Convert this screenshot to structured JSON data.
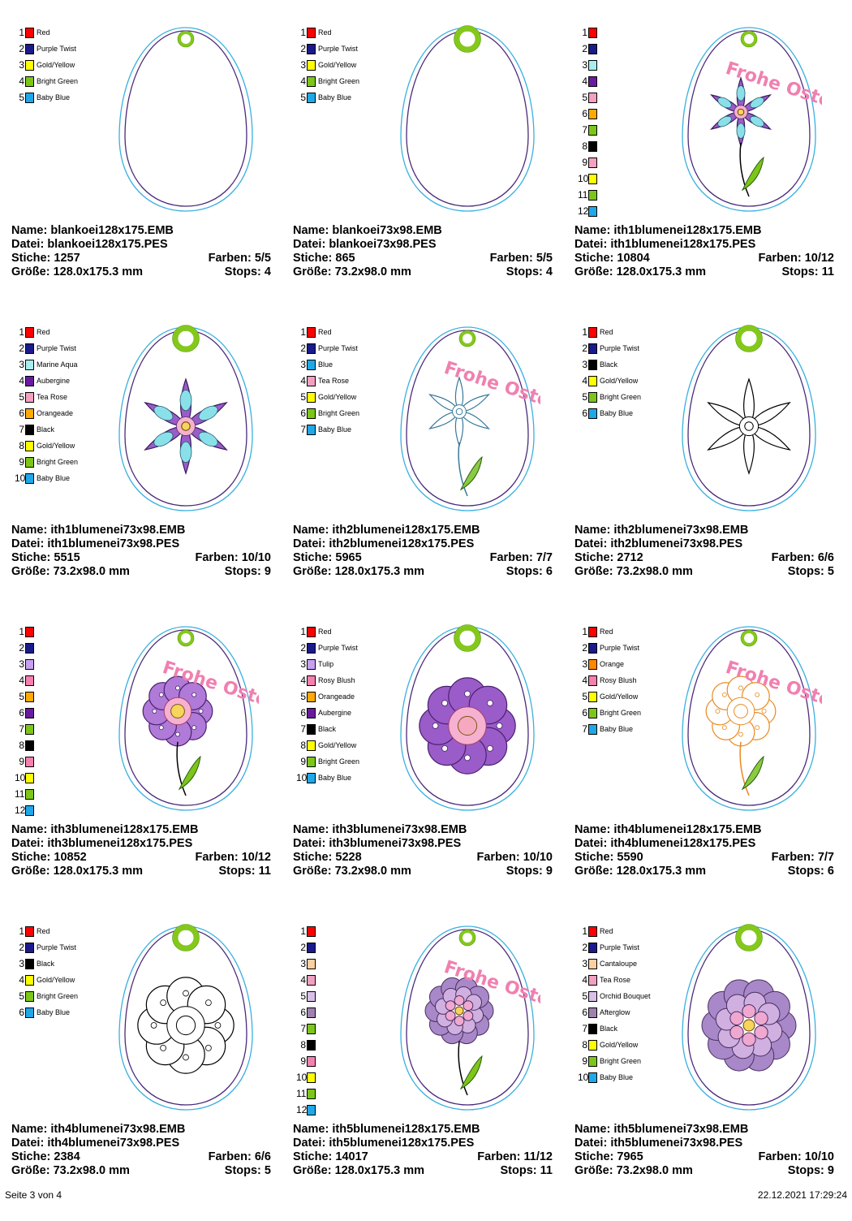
{
  "labels": {
    "name": "Name:",
    "file": "Datei:",
    "stitches": "Stiche:",
    "colors": "Farben:",
    "size": "Größe:",
    "stops": "Stops:"
  },
  "footer": {
    "page": "Seite 3 von 4",
    "datetime": "22.12.2021 17:29:24"
  },
  "designs": [
    {
      "name": "blankoei128x175.EMB",
      "file": "blankoei128x175.PES",
      "stitches": "1257",
      "colors": "5/5",
      "size": "128.0x175.3 mm",
      "stops": "4",
      "art": "blank",
      "ring": "small",
      "palette": [
        [
          "Red",
          "#ff0000"
        ],
        [
          "Purple Twist",
          "#1a1a8c"
        ],
        [
          "Gold/Yellow",
          "#ffff00"
        ],
        [
          "Bright Green",
          "#7cc618"
        ],
        [
          "Baby Blue",
          "#1ea8e8"
        ]
      ]
    },
    {
      "name": "blankoei73x98.EMB",
      "file": "blankoei73x98.PES",
      "stitches": "865",
      "colors": "5/5",
      "size": "73.2x98.0 mm",
      "stops": "4",
      "art": "blank",
      "ring": "big",
      "palette": [
        [
          "Red",
          "#ff0000"
        ],
        [
          "Purple Twist",
          "#1a1a8c"
        ],
        [
          "Gold/Yellow",
          "#ffff00"
        ],
        [
          "Bright Green",
          "#7cc618"
        ],
        [
          "Baby Blue",
          "#1ea8e8"
        ]
      ]
    },
    {
      "name": "ith1blumenei128x175.EMB",
      "file": "ith1blumenei128x175.PES",
      "stitches": "10804",
      "colors": "10/12",
      "size": "128.0x175.3 mm",
      "stops": "11",
      "art": "star-stem",
      "ring": "small",
      "text": "Frohe Ostern",
      "petal": "#9a5cc8",
      "center": "#f4b3c8",
      "palette": [
        [
          "",
          "#ff0000"
        ],
        [
          "",
          "#1a1a8c"
        ],
        [
          "",
          "#a8eef0"
        ],
        [
          "",
          "#6a1aa0"
        ],
        [
          "",
          "#f4a0c0"
        ],
        [
          "",
          "#ffaa00"
        ],
        [
          "",
          "#7cc618"
        ],
        [
          "",
          "#000000"
        ],
        [
          "",
          "#f4a0c0"
        ],
        [
          "",
          "#ffff00"
        ],
        [
          "",
          "#7cc618"
        ],
        [
          "",
          "#1ea8e8"
        ]
      ]
    },
    {
      "name": "ith1blumenei73x98.EMB",
      "file": "ith1blumenei73x98.PES",
      "stitches": "5515",
      "colors": "10/10",
      "size": "73.2x98.0 mm",
      "stops": "9",
      "art": "star",
      "ring": "big",
      "petal": "#9a5cc8",
      "center": "#f4b3c8",
      "palette": [
        [
          "Red",
          "#ff0000"
        ],
        [
          "Purple Twist",
          "#1a1a8c"
        ],
        [
          "Marine Aqua",
          "#a8eef0"
        ],
        [
          "Aubergine",
          "#6a1aa0"
        ],
        [
          "Tea Rose",
          "#f4a0c0"
        ],
        [
          "Orangeade",
          "#ffaa00"
        ],
        [
          "Black",
          "#000000"
        ],
        [
          "Gold/Yellow",
          "#ffff00"
        ],
        [
          "Bright Green",
          "#7cc618"
        ],
        [
          "Baby Blue",
          "#1ea8e8"
        ]
      ]
    },
    {
      "name": "ith2blumenei128x175.EMB",
      "file": "ith2blumenei128x175.PES",
      "stitches": "5965",
      "colors": "7/7",
      "size": "128.0x175.3 mm",
      "stops": "6",
      "art": "outline-stem",
      "ring": "small",
      "text": "Frohe Ostern",
      "line": "#3a7a9a",
      "palette": [
        [
          "Red",
          "#ff0000"
        ],
        [
          "Purple Twist",
          "#1a1a8c"
        ],
        [
          "Blue",
          "#1ea8e8"
        ],
        [
          "Tea Rose",
          "#f4a0c0"
        ],
        [
          "Gold/Yellow",
          "#ffff00"
        ],
        [
          "Bright Green",
          "#7cc618"
        ],
        [
          "Baby Blue",
          "#1ea8e8"
        ]
      ]
    },
    {
      "name": "ith2blumenei73x98.EMB",
      "file": "ith2blumenei73x98.PES",
      "stitches": "2712",
      "colors": "6/6",
      "size": "73.2x98.0 mm",
      "stops": "5",
      "art": "outline",
      "ring": "big",
      "line": "#000000",
      "palette": [
        [
          "Red",
          "#ff0000"
        ],
        [
          "Purple Twist",
          "#1a1a8c"
        ],
        [
          "Black",
          "#000000"
        ],
        [
          "Gold/Yellow",
          "#ffff00"
        ],
        [
          "Bright Green",
          "#7cc618"
        ],
        [
          "Baby Blue",
          "#1ea8e8"
        ]
      ]
    },
    {
      "name": "ith3blumenei128x175.EMB",
      "file": "ith3blumenei128x175.PES",
      "stitches": "10852",
      "colors": "10/12",
      "size": "128.0x175.3 mm",
      "stops": "11",
      "art": "round-stem",
      "ring": "small",
      "text": "Frohe Ostern",
      "petal": "#b07ad8",
      "center": "#f6d55a",
      "palette": [
        [
          "",
          "#ff0000"
        ],
        [
          "",
          "#1a1a8c"
        ],
        [
          "",
          "#c8a0f0"
        ],
        [
          "",
          "#f480b0"
        ],
        [
          "",
          "#ffaa00"
        ],
        [
          "",
          "#6a1aa0"
        ],
        [
          "",
          "#7cc618"
        ],
        [
          "",
          "#000000"
        ],
        [
          "",
          "#f480b0"
        ],
        [
          "",
          "#ffff00"
        ],
        [
          "",
          "#7cc618"
        ],
        [
          "",
          "#1ea8e8"
        ]
      ]
    },
    {
      "name": "ith3blumenei73x98.EMB",
      "file": "ith3blumenei73x98.PES",
      "stitches": "5228",
      "colors": "10/10",
      "size": "73.2x98.0 mm",
      "stops": "9",
      "art": "round",
      "ring": "big",
      "petal": "#9a5cc8",
      "center": "#f6a8c0",
      "palette": [
        [
          "Red",
          "#ff0000"
        ],
        [
          "Purple Twist",
          "#1a1a8c"
        ],
        [
          "Tulip",
          "#c8a0f0"
        ],
        [
          "Rosy Blush",
          "#f480b0"
        ],
        [
          "Orangeade",
          "#ffaa00"
        ],
        [
          "Aubergine",
          "#6a1aa0"
        ],
        [
          "Black",
          "#000000"
        ],
        [
          "Gold/Yellow",
          "#ffff00"
        ],
        [
          "Bright Green",
          "#7cc618"
        ],
        [
          "Baby Blue",
          "#1ea8e8"
        ]
      ]
    },
    {
      "name": "ith4blumenei128x175.EMB",
      "file": "ith4blumenei128x175.PES",
      "stitches": "5590",
      "colors": "7/7",
      "size": "128.0x175.3 mm",
      "stops": "6",
      "art": "round-outline-stem",
      "ring": "small",
      "text": "Frohe Ostern",
      "line": "#e88a20",
      "palette": [
        [
          "Red",
          "#ff0000"
        ],
        [
          "Purple Twist",
          "#1a1a8c"
        ],
        [
          "Orange",
          "#ff8800"
        ],
        [
          "Rosy Blush",
          "#f480b0"
        ],
        [
          "Gold/Yellow",
          "#ffff00"
        ],
        [
          "Bright Green",
          "#7cc618"
        ],
        [
          "Baby Blue",
          "#1ea8e8"
        ]
      ]
    },
    {
      "name": "ith4blumenei73x98.EMB",
      "file": "ith4blumenei73x98.PES",
      "stitches": "2384",
      "colors": "6/6",
      "size": "73.2x98.0 mm",
      "stops": "5",
      "art": "round-outline",
      "ring": "big",
      "line": "#000000",
      "palette": [
        [
          "Red",
          "#ff0000"
        ],
        [
          "Purple Twist",
          "#1a1a8c"
        ],
        [
          "Black",
          "#000000"
        ],
        [
          "Gold/Yellow",
          "#ffff00"
        ],
        [
          "Bright Green",
          "#7cc618"
        ],
        [
          "Baby Blue",
          "#1ea8e8"
        ]
      ]
    },
    {
      "name": "ith5blumenei128x175.EMB",
      "file": "ith5blumenei128x175.PES",
      "stitches": "14017",
      "colors": "11/12",
      "size": "128.0x175.3 mm",
      "stops": "11",
      "art": "dahlia-stem",
      "ring": "small",
      "text": "Frohe Ostern",
      "petal": "#a888c8",
      "center": "#f0a8d0",
      "palette": [
        [
          "",
          "#ff0000"
        ],
        [
          "",
          "#1a1a8c"
        ],
        [
          "",
          "#fcd0a0"
        ],
        [
          "",
          "#f0a0c0"
        ],
        [
          "",
          "#d8c0e8"
        ],
        [
          "",
          "#a080b0"
        ],
        [
          "",
          "#7cc618"
        ],
        [
          "",
          "#000000"
        ],
        [
          "",
          "#f480b0"
        ],
        [
          "",
          "#ffff00"
        ],
        [
          "",
          "#7cc618"
        ],
        [
          "",
          "#1ea8e8"
        ]
      ]
    },
    {
      "name": "ith5blumenei73x98.EMB",
      "file": "ith5blumenei73x98.PES",
      "stitches": "7965",
      "colors": "10/10",
      "size": "73.2x98.0 mm",
      "stops": "9",
      "art": "dahlia",
      "ring": "big",
      "petal": "#a888c8",
      "center": "#f0a8d0",
      "palette": [
        [
          "Red",
          "#ff0000"
        ],
        [
          "Purple Twist",
          "#1a1a8c"
        ],
        [
          "Cantaloupe",
          "#fcd0a0"
        ],
        [
          "Tea Rose",
          "#f0a0c0"
        ],
        [
          "Orchid Bouquet",
          "#d8c0e8"
        ],
        [
          "Afterglow",
          "#a080b0"
        ],
        [
          "Black",
          "#000000"
        ],
        [
          "Gold/Yellow",
          "#ffff00"
        ],
        [
          "Bright Green",
          "#7cc618"
        ],
        [
          "Baby Blue",
          "#1ea8e8"
        ]
      ]
    }
  ]
}
